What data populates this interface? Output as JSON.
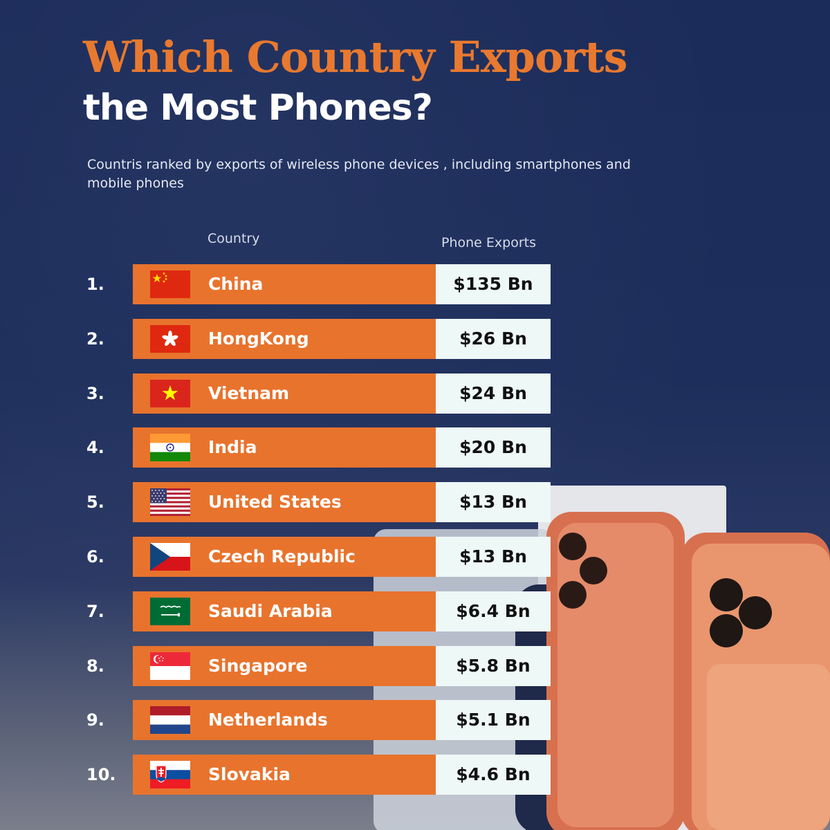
{
  "header": {
    "title_line1": "Which Country Exports",
    "title_line2": "the Most Phones?",
    "subtitle": "Countris ranked by exports of wireless phone devices , including smartphones and mobile phones"
  },
  "table_headers": {
    "country": "Country",
    "value": "Phone Exports"
  },
  "colors": {
    "bar": "#e8732d",
    "value_box": "#eef8f7",
    "title_accent": "#e8792f",
    "background": "#1d2e5c"
  },
  "chart_data": {
    "type": "table",
    "columns": [
      "Country",
      "Phone Exports"
    ],
    "unit": "Bn",
    "rows": [
      {
        "rank": "1.",
        "country": "China",
        "flag": "china-flag-icon",
        "value": 135,
        "label": "$135 Bn"
      },
      {
        "rank": "2.",
        "country": "HongKong",
        "flag": "hong-kong-flag-icon",
        "value": 26,
        "label": "$26 Bn"
      },
      {
        "rank": "3.",
        "country": "Vietnam",
        "flag": "vietnam-flag-icon",
        "value": 24,
        "label": "$24 Bn"
      },
      {
        "rank": "4.",
        "country": "India",
        "flag": "india-flag-icon",
        "value": 20,
        "label": "$20 Bn"
      },
      {
        "rank": "5.",
        "country": "United States",
        "flag": "united-states-flag-icon",
        "value": 13,
        "label": "$13 Bn"
      },
      {
        "rank": "6.",
        "country": "Czech Republic",
        "flag": "czech-republic-flag-icon",
        "value": 13,
        "label": "$13 Bn"
      },
      {
        "rank": "7.",
        "country": "Saudi Arabia",
        "flag": "saudi-arabia-flag-icon",
        "value": 6.4,
        "label": "$6.4 Bn"
      },
      {
        "rank": "8.",
        "country": "Singapore",
        "flag": "singapore-flag-icon",
        "value": 5.8,
        "label": "$5.8 Bn"
      },
      {
        "rank": "9.",
        "country": "Netherlands",
        "flag": "netherlands-flag-icon",
        "value": 5.1,
        "label": "$5.1 Bn"
      },
      {
        "rank": "10.",
        "country": "Slovakia",
        "flag": "slovakia-flag-icon",
        "value": 4.6,
        "label": "$4.6 Bn"
      }
    ]
  }
}
